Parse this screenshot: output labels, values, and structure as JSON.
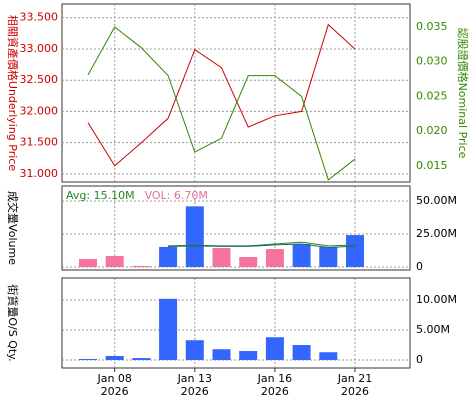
{
  "chart_data": [
    {
      "type": "line",
      "ylabel": "相關資產價格Underlying Price",
      "ylabel_color": "#cc0000",
      "y2label": "認股證價格Nominal Price",
      "y2label_color": "#338800",
      "ylim": [
        30.87,
        33.72
      ],
      "yticks": [
        {
          "value": 31,
          "label": "31.000"
        },
        {
          "value": 31.5,
          "label": "31.500"
        },
        {
          "value": 32,
          "label": "32.000"
        },
        {
          "value": 32.5,
          "label": "32.500"
        },
        {
          "value": 33,
          "label": "33.000"
        },
        {
          "value": 33.5,
          "label": "33.500"
        }
      ],
      "y2lim": [
        0.0127,
        0.0383
      ],
      "y2ticks": [
        0.015,
        {
          "value": 0.02,
          "label": "0.020"
        },
        0.025,
        {
          "value": 0.03,
          "label": "0.030"
        },
        0.035
      ],
      "grid": true,
      "series": [
        {
          "color": "#cc0000",
          "values": [
            31.82,
            31.13,
            31.5,
            31.89,
            32.99,
            32.7,
            31.75,
            31.93,
            32.0,
            33.39,
            33.0
          ]
        },
        {
          "color": "#338800",
          "axis": "y2",
          "values": [
            0.0281,
            0.035,
            0.032,
            0.028,
            0.017,
            0.019,
            0.028,
            0.028,
            0.025,
            0.013,
            0.016
          ]
        }
      ]
    },
    {
      "type": "bar",
      "ylabel": "成交量Volume",
      "ylabel_color": "#000000",
      "ylim": [
        -2270000,
        61400000
      ],
      "yticks": [
        0,
        {
          "value": 25000000,
          "label": "25.00M"
        },
        {
          "value": 50000000,
          "label": "50.00M"
        }
      ],
      "grid": true,
      "annotations": [
        {
          "text": "Avg: 15.10M",
          "color": "#228822"
        },
        {
          "text": "VOL: 6.70M",
          "color": "#e070a0"
        }
      ],
      "values": [
        6000000,
        8300000,
        800000,
        15200000,
        46000000,
        14400000,
        7600000,
        13600000,
        17400000,
        15200000,
        24200000
      ],
      "colors": [
        "#f4749b",
        "#f4749b",
        "#f4749b",
        "#3366ff",
        "#3366ff",
        "#f4749b",
        "#f4749b",
        "#f4749b",
        "#3366ff",
        "#3366ff",
        "#3366ff"
      ],
      "lines": [
        {
          "color": "#228822",
          "values": [
            null,
            null,
            null,
            16000000,
            16500000,
            16000000,
            16000000,
            17400000,
            18900000,
            16000000,
            16700000
          ]
        },
        {
          "color": "#226666",
          "values": [
            null,
            null,
            null,
            15500000,
            16000000,
            15600000,
            15600000,
            16800000,
            17400000,
            14800000,
            15800000
          ]
        }
      ]
    },
    {
      "type": "bar",
      "ylabel": "街貨量O/S Qty.",
      "ylabel_color": "#000000",
      "ylim": [
        -1330000,
        13670000
      ],
      "yticks": [
        0,
        {
          "value": 5000000,
          "label": "5.00M"
        },
        {
          "value": 10000000,
          "label": "10.00M"
        }
      ],
      "grid": true,
      "color": "#3366ff",
      "values": [
        170000,
        670000,
        330000,
        10200000,
        3300000,
        1800000,
        1500000,
        3800000,
        2500000,
        1300000,
        null
      ],
      "categories": [
        null,
        "Jan 08",
        null,
        null,
        "Jan 13",
        null,
        null,
        "Jan 16",
        null,
        null,
        "Jan 21"
      ],
      "category_years": [
        null,
        "2026",
        null,
        null,
        "2026",
        null,
        null,
        "2026",
        null,
        null,
        "2026"
      ]
    }
  ]
}
